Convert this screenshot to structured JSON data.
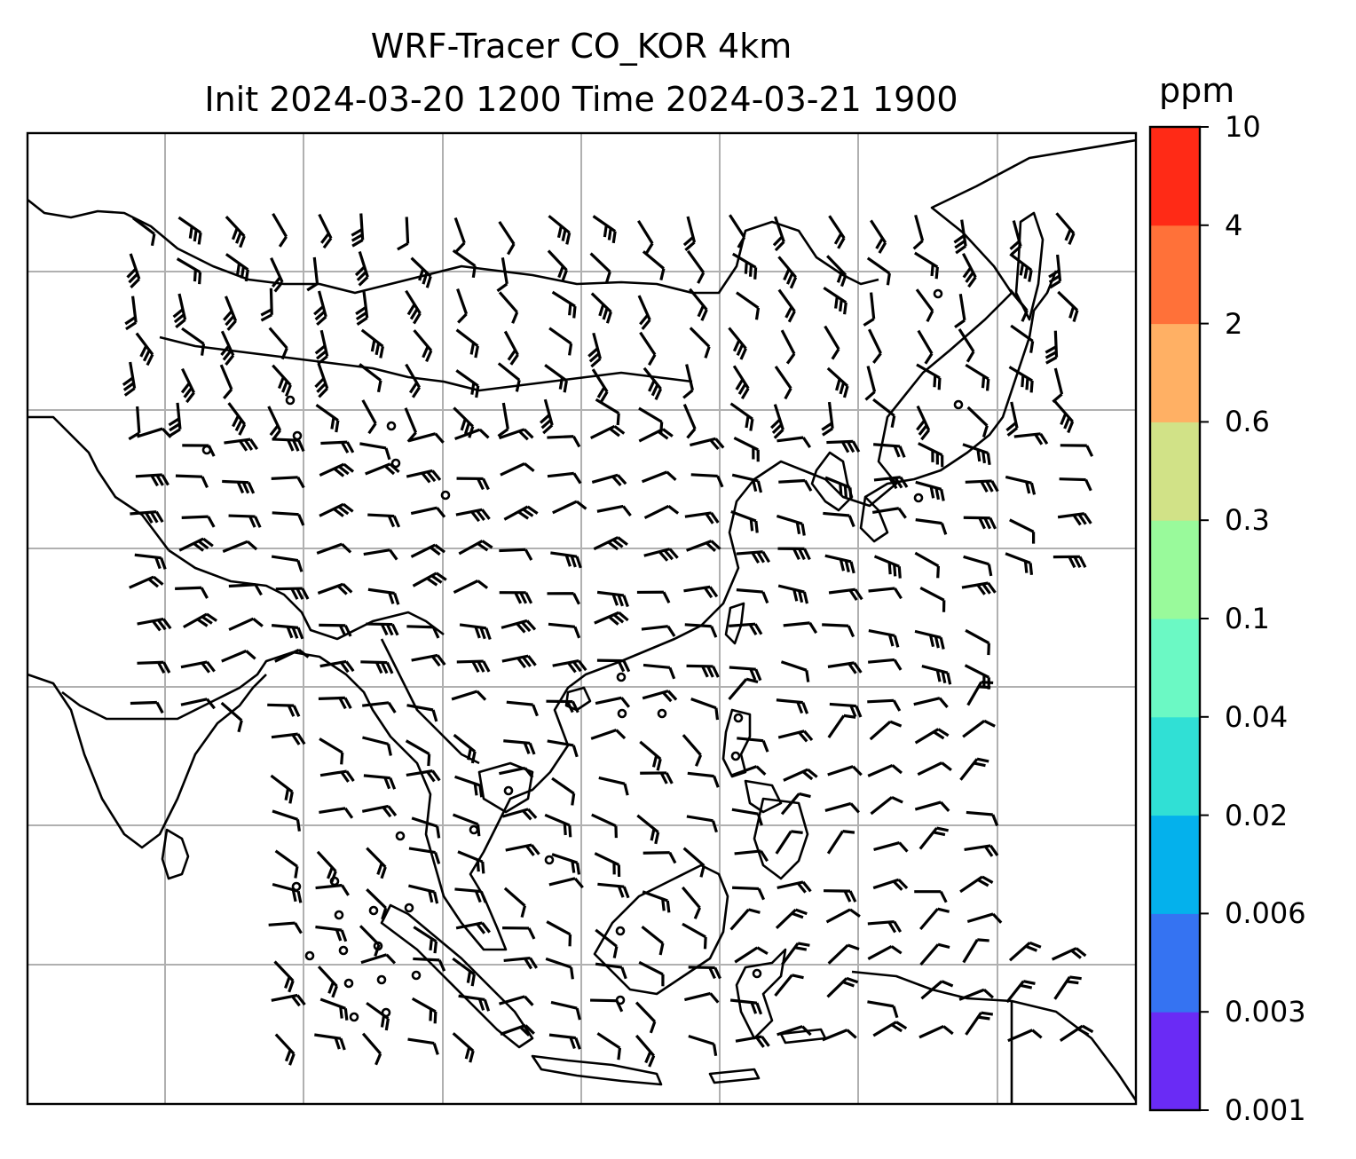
{
  "title": {
    "line1": "WRF-Tracer CO_KOR 4km",
    "line2": "Init 2024-03-20 1200 Time 2024-03-21 1900"
  },
  "colorbar": {
    "unit": "ppm",
    "levels": [
      "0.001",
      "0.003",
      "0.006",
      "0.02",
      "0.04",
      "0.1",
      "0.3",
      "0.6",
      "2",
      "4",
      "10"
    ],
    "colors": [
      "#6a2bf5",
      "#3573f2",
      "#04b1ec",
      "#30e0d5",
      "#6bf9c4",
      "#99fa9b",
      "#d1e287",
      "#ffb064",
      "#ff7139",
      "#ff2a16"
    ]
  },
  "map": {
    "frame_color": "#000000",
    "gridline_color": "#b0b0b0",
    "coastline_color": "#000000",
    "wind_barb_color": "#000000"
  }
}
